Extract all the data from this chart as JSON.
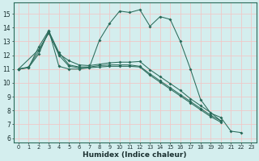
{
  "background_color": "#d4eeee",
  "grid_color": "#f0c8c8",
  "line_color": "#2a6b5a",
  "xlabel": "Humidex (Indice chaleur)",
  "xlim_min": -0.5,
  "xlim_max": 23.5,
  "ylim_min": 5.7,
  "ylim_max": 15.8,
  "yticks": [
    6,
    7,
    8,
    9,
    10,
    11,
    12,
    13,
    14,
    15
  ],
  "lines": [
    {
      "x": [
        0,
        1,
        2,
        3,
        4,
        5,
        6,
        7,
        8,
        9,
        10,
        11,
        12,
        13,
        14,
        15,
        16,
        17,
        18,
        19,
        20,
        21,
        22
      ],
      "y": [
        11.0,
        11.1,
        12.6,
        13.8,
        11.2,
        11.0,
        11.0,
        11.1,
        13.1,
        14.3,
        15.2,
        15.1,
        15.3,
        14.1,
        14.8,
        14.6,
        13.0,
        11.0,
        8.8,
        7.8,
        7.5,
        6.5,
        6.4
      ]
    },
    {
      "x": [
        0,
        1,
        2,
        3,
        4,
        5,
        6,
        7,
        8,
        9,
        10,
        11,
        12,
        13,
        14,
        15,
        16,
        17,
        18,
        19,
        20
      ],
      "y": [
        11.0,
        11.15,
        12.3,
        13.7,
        12.0,
        11.2,
        11.1,
        11.1,
        11.15,
        11.2,
        11.2,
        11.2,
        11.15,
        10.55,
        10.05,
        9.55,
        9.05,
        8.55,
        8.05,
        7.55,
        7.15
      ]
    },
    {
      "x": [
        0,
        1,
        2,
        3,
        4,
        5,
        6,
        7,
        8,
        9,
        10,
        11,
        12,
        13,
        14,
        15,
        16,
        17,
        18,
        19,
        20
      ],
      "y": [
        11.0,
        11.1,
        12.1,
        13.75,
        12.2,
        11.3,
        11.15,
        11.15,
        11.25,
        11.3,
        11.3,
        11.3,
        11.2,
        10.65,
        10.15,
        9.65,
        9.15,
        8.65,
        8.15,
        7.65,
        7.25
      ]
    },
    {
      "x": [
        0,
        2,
        3,
        4,
        5,
        6,
        7,
        8,
        9,
        10,
        11,
        12,
        13,
        14,
        15,
        16,
        17,
        18,
        19,
        20
      ],
      "y": [
        11.0,
        12.4,
        13.6,
        12.1,
        11.6,
        11.3,
        11.25,
        11.35,
        11.45,
        11.5,
        11.5,
        11.55,
        10.95,
        10.45,
        9.95,
        9.45,
        8.85,
        8.35,
        7.85,
        7.25
      ]
    }
  ]
}
